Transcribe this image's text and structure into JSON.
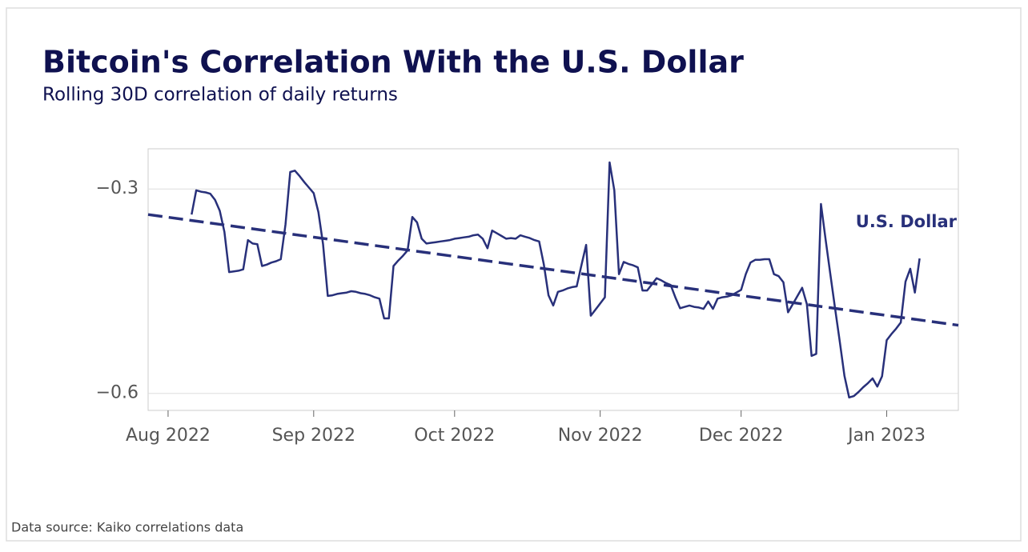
{
  "chart_data": {
    "type": "line",
    "title": "Bitcoin's Correlation With the U.S. Dollar",
    "subtitle": "Rolling 30D correlation of daily returns",
    "source": "Data source: Kaiko correlations data",
    "categories": [
      null,
      null,
      null,
      null,
      "Aug 2022",
      null,
      null,
      null,
      null,
      null,
      null,
      null,
      null,
      null,
      null,
      null,
      null,
      null,
      null,
      null,
      null,
      null,
      null,
      null,
      null,
      null,
      null,
      null,
      null,
      null,
      null,
      null,
      null,
      null,
      null,
      "Sep 2022",
      null,
      null,
      null,
      null,
      null,
      null,
      null,
      null,
      null,
      null,
      null,
      null,
      null,
      null,
      null,
      null,
      null,
      null,
      null,
      null,
      null,
      null,
      null,
      null,
      null,
      null,
      null,
      null,
      null,
      "Oct 2022",
      null,
      null,
      null,
      null,
      null,
      null,
      null,
      null,
      null,
      null,
      null,
      null,
      null,
      null,
      null,
      null,
      null,
      null,
      null,
      null,
      null,
      null,
      null,
      null,
      null,
      null,
      null,
      null,
      null,
      null,
      "Nov 2022",
      null,
      null,
      null,
      null,
      null,
      null,
      null,
      null,
      null,
      null,
      null,
      null,
      null,
      null,
      null,
      null,
      null,
      null,
      null,
      null,
      null,
      null,
      null,
      null,
      null,
      null,
      null,
      null,
      null,
      "Dec 2022",
      null,
      null,
      null,
      null,
      null,
      null,
      null,
      null,
      null,
      null,
      null,
      null,
      null,
      null,
      null,
      null,
      null,
      null,
      null,
      null,
      null,
      null,
      null,
      null,
      null,
      null,
      null,
      null,
      null,
      null,
      "Jan 2023",
      null,
      null,
      null,
      null,
      null,
      null,
      null,
      null,
      null,
      null,
      null,
      null,
      null,
      null,
      null,
      null
    ],
    "series": [
      {
        "name": "U.S. Dollar",
        "color": "#28307a",
        "values": [
          null,
          null,
          null,
          null,
          null,
          null,
          null,
          null,
          null,
          -0.3375,
          -0.302,
          -0.304,
          -0.305,
          -0.307,
          -0.316,
          -0.332,
          -0.363,
          -0.422,
          -0.421,
          -0.42,
          -0.418,
          -0.375,
          -0.38,
          -0.381,
          -0.413,
          -0.411,
          -0.408,
          -0.406,
          -0.403,
          -0.352,
          -0.275,
          -0.273,
          -0.281,
          -0.29,
          -0.298,
          -0.306,
          -0.334,
          -0.381,
          -0.457,
          -0.456,
          -0.454,
          -0.453,
          -0.452,
          -0.45,
          -0.451,
          -0.453,
          -0.454,
          -0.456,
          -0.459,
          -0.461,
          -0.49,
          -0.49,
          -0.413,
          -0.405,
          -0.398,
          -0.39,
          -0.341,
          -0.349,
          -0.373,
          -0.38,
          -0.379,
          -0.378,
          -0.377,
          -0.376,
          -0.375,
          -0.373,
          -0.372,
          -0.371,
          -0.37,
          -0.368,
          -0.367,
          -0.373,
          -0.387,
          -0.361,
          -0.365,
          -0.369,
          -0.373,
          -0.372,
          -0.373,
          -0.368,
          -0.37,
          -0.372,
          -0.375,
          -0.377,
          -0.411,
          -0.456,
          -0.471,
          -0.451,
          -0.449,
          -0.446,
          -0.444,
          -0.443,
          -0.412,
          -0.382,
          -0.486,
          -0.477,
          -0.468,
          -0.459,
          -0.261,
          -0.302,
          -0.425,
          -0.407,
          -0.41,
          -0.412,
          -0.415,
          -0.449,
          -0.449,
          -0.44,
          -0.431,
          -0.434,
          -0.438,
          -0.441,
          -0.459,
          -0.475,
          -0.473,
          -0.471,
          -0.473,
          -0.474,
          -0.476,
          -0.465,
          -0.476,
          -0.461,
          -0.459,
          -0.458,
          -0.456,
          -0.452,
          -0.448,
          -0.425,
          -0.408,
          -0.404,
          -0.404,
          -0.403,
          -0.403,
          -0.425,
          -0.428,
          -0.437,
          -0.481,
          -0.469,
          -0.457,
          -0.445,
          -0.469,
          -0.545,
          -0.542,
          -0.322,
          -0.375,
          -0.425,
          -0.475,
          -0.524,
          -0.574,
          -0.606,
          -0.604,
          -0.598,
          -0.591,
          -0.585,
          -0.578,
          -0.59,
          -0.575,
          -0.522,
          -0.513,
          -0.505,
          -0.496,
          -0.436,
          -0.417,
          -0.452,
          -0.402,
          null,
          null,
          null,
          null,
          null,
          null,
          null,
          null,
          null
        ]
      }
    ],
    "trendline": {
      "start": -0.3375,
      "end": -0.5,
      "dashed": true
    },
    "ylim": [
      -0.625,
      -0.241
    ],
    "yticks": [
      {
        "value": -0.3,
        "label": "−0.3"
      },
      {
        "value": -0.6,
        "label": "−0.6"
      }
    ],
    "grid": true
  }
}
